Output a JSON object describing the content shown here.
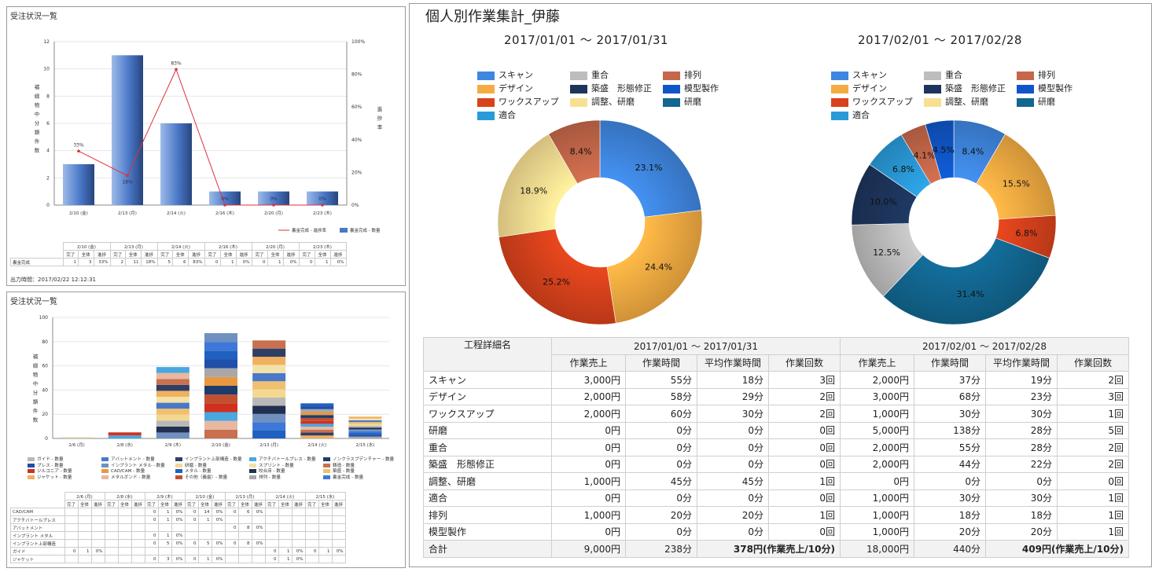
{
  "panel1": {
    "title": "受注状況一覧",
    "footer": "出力時間：2017/02/22 12:12:31",
    "chart_data": {
      "type": "bar",
      "categories": [
        "2/10 (金)",
        "2/13 (月)",
        "2/14 (火)",
        "2/16 (木)",
        "2/20 (月)",
        "2/23 (木)"
      ],
      "series": [
        {
          "name": "裏金完成 - 数量",
          "values": [
            3,
            11,
            6,
            1,
            1,
            1
          ],
          "color": "#4a78c8"
        },
        {
          "name": "裏金完成 - 進捗率",
          "values": [
            33,
            18,
            83,
            0,
            0,
            0
          ],
          "color": "#e0303a"
        }
      ],
      "data_labels": [
        "33%",
        "18%",
        "83%",
        "0%",
        "0%",
        "0%"
      ],
      "ylabel": "補綴物中分類件数",
      "y2label": "進捗率",
      "ylim": [
        0,
        12
      ],
      "y2lim": [
        0,
        100
      ],
      "y_ticks": [
        "0",
        "2",
        "4",
        "6",
        "8",
        "10",
        "12"
      ],
      "y2_ticks": [
        "0%",
        "20%",
        "40%",
        "60%",
        "80%",
        "100%"
      ],
      "legend": [
        "裏金完成 - 進捗率",
        "裏金完成 - 数量"
      ]
    },
    "table": {
      "dates": [
        "2/10 (金)",
        "2/13 (月)",
        "2/14 (火)",
        "2/16 (木)",
        "2/20 (月)",
        "2/23 (木)"
      ],
      "subheaders": [
        "完了",
        "全体",
        "進捗"
      ],
      "row_label": "裏金完成",
      "values": [
        "1",
        "3",
        "33%",
        "2",
        "11",
        "18%",
        "5",
        "6",
        "83%",
        "0",
        "1",
        "0%",
        "0",
        "1",
        "0%",
        "0",
        "1",
        "0%"
      ]
    }
  },
  "panel2": {
    "title": "受注状況一覧",
    "chart_data": {
      "type": "bar",
      "stacked": true,
      "categories": [
        "2/6 (月)",
        "2/8 (水)",
        "2/9 (木)",
        "2/10 (金)",
        "2/13 (月)",
        "2/14 (火)",
        "2/15 (水)"
      ],
      "totals": [
        1,
        5,
        59,
        87,
        81,
        29,
        18
      ],
      "ylabel": "補綴物中分類件数",
      "ylim": [
        0,
        100
      ],
      "y_ticks": [
        "0",
        "20",
        "40",
        "60",
        "80",
        "100"
      ],
      "legend": [
        "ガイド - 数量",
        "アバットメント - 数量",
        "インプラント上部構造 - 数量",
        "アクチバトールプレス - 数量",
        "ノンクラスプデンチャー - 数量",
        "プレス - 数量",
        "インプラント メタル - 数量",
        "研磨 - 数量",
        "スプリント - 数量",
        "鋳造 - 数量",
        "ジルコニア - 数量",
        "CAD/CAM - 数量",
        "メタル - 数量",
        "咬合床 - 数量",
        "築盛 - 数量",
        "ジャケット - 数量",
        "メタルボンド - 数量",
        "その他（義歯）- 数量",
        "排列 - 数量",
        "裏金完成 - 数量"
      ],
      "legend_colors": [
        "#b8b8b8",
        "#4a78c8",
        "#2e3f66",
        "#4aa8e0",
        "#1c3c6c",
        "#1f4fa8",
        "#7090c0",
        "#f4d890",
        "#f3e2a8",
        "#c87050",
        "#d03020",
        "#e89840",
        "#2060c0",
        "#203050",
        "#f0c070",
        "#f0b060",
        "#e8b8a0",
        "#c05030",
        "#a8a8a8",
        "#3d78d8"
      ]
    },
    "table": {
      "dates": [
        "2/6 (月)",
        "2/8 (水)",
        "2/9 (木)",
        "2/10 (金)",
        "2/13 (月)",
        "2/14 (火)",
        "2/15 (水)"
      ],
      "subheaders": [
        "完了",
        "全体",
        "進捗"
      ],
      "rows": [
        {
          "label": "CAD/CAM",
          "cells": [
            "",
            "",
            "",
            "",
            "",
            "",
            "0",
            "1",
            "0%",
            "0",
            "14",
            "0%",
            "0",
            "6",
            "0%",
            "",
            "",
            "",
            "",
            "",
            ""
          ]
        },
        {
          "label": "アクチバトールプレス",
          "cells": [
            "",
            "",
            "",
            "",
            "",
            "",
            "0",
            "1",
            "0%",
            "0",
            "1",
            "0%",
            "",
            "",
            "",
            "",
            "",
            "",
            "",
            "",
            ""
          ]
        },
        {
          "label": "アバットメント",
          "cells": [
            "",
            "",
            "",
            "",
            "",
            "",
            "",
            "",
            "",
            "",
            "",
            "",
            "0",
            "8",
            "0%",
            "",
            "",
            "",
            "",
            "",
            ""
          ]
        },
        {
          "label": "インプラント メタル",
          "cells": [
            "",
            "",
            "",
            "",
            "",
            "",
            "0",
            "1",
            "0%",
            "",
            "",
            "",
            "",
            "",
            "",
            "",
            "",
            "",
            "",
            "",
            ""
          ]
        },
        {
          "label": "インプラント上部構造",
          "cells": [
            "",
            "",
            "",
            "",
            "",
            "",
            "0",
            "5",
            "0%",
            "0",
            "5",
            "0%",
            "0",
            "8",
            "0%",
            "",
            "",
            "",
            "",
            "",
            ""
          ]
        },
        {
          "label": "ガイド",
          "cells": [
            "0",
            "1",
            "0%",
            "",
            "",
            "",
            "",
            "",
            "",
            "",
            "",
            "",
            "",
            "",
            "",
            "0",
            "1",
            "0%",
            "0",
            "1",
            "0%"
          ]
        },
        {
          "label": "ジャケット",
          "cells": [
            "",
            "",
            "",
            "",
            "",
            "",
            "0",
            "3",
            "0%",
            "0",
            "1",
            "0%",
            "",
            "",
            "",
            "0",
            "1",
            "0%",
            "",
            "",
            ""
          ]
        }
      ]
    }
  },
  "main": {
    "title": "個人別作業集計_伊藤",
    "legend": [
      {
        "label": "スキャン",
        "color": "#3f86e0"
      },
      {
        "label": "重合",
        "color": "#bdbdbd"
      },
      {
        "label": "排列",
        "color": "#c4684a"
      },
      {
        "label": "デザイン",
        "color": "#f4ac42"
      },
      {
        "label": "築盛　形態修正",
        "color": "#1d355c"
      },
      {
        "label": "模型製作",
        "color": "#0f56c8"
      },
      {
        "label": "ワックスアップ",
        "color": "#d8421c"
      },
      {
        "label": "調整、研磨",
        "color": "#f8e093"
      },
      {
        "label": "研磨",
        "color": "#126690"
      },
      {
        "label": "適合",
        "color": "#2a9ad8"
      }
    ],
    "periods": [
      {
        "title": "2017/01/01 ～ 2017/01/31",
        "chart_data": {
          "type": "pie",
          "donut": true,
          "slices": [
            {
              "label": "スキャン",
              "value": 23.1,
              "color": "#3f86e0"
            },
            {
              "label": "デザイン",
              "value": 24.4,
              "color": "#f4ac42"
            },
            {
              "label": "ワックスアップ",
              "value": 25.2,
              "color": "#d8421c"
            },
            {
              "label": "調整、研磨",
              "value": 18.9,
              "color": "#f8e093"
            },
            {
              "label": "排列",
              "value": 8.4,
              "color": "#c4684a"
            }
          ]
        }
      },
      {
        "title": "2017/02/01 ～ 2017/02/28",
        "chart_data": {
          "type": "pie",
          "donut": true,
          "slices": [
            {
              "label": "スキャン",
              "value": 8.4,
              "color": "#3f86e0"
            },
            {
              "label": "デザイン",
              "value": 15.5,
              "color": "#f4ac42"
            },
            {
              "label": "ワックスアップ",
              "value": 6.8,
              "color": "#d8421c"
            },
            {
              "label": "研磨",
              "value": 31.4,
              "color": "#126690"
            },
            {
              "label": "重合",
              "value": 12.5,
              "color": "#bdbdbd"
            },
            {
              "label": "築盛　形態修正",
              "value": 10.0,
              "color": "#1d355c"
            },
            {
              "label": "適合",
              "value": 6.8,
              "color": "#2a9ad8"
            },
            {
              "label": "排列",
              "value": 4.1,
              "color": "#c4684a"
            },
            {
              "label": "模型製作",
              "value": 4.5,
              "color": "#0f56c8"
            }
          ]
        }
      }
    ],
    "table": {
      "name_header": "工程詳細名",
      "period_headers": [
        "2017/01/01 ～ 2017/01/31",
        "2017/02/01 ～ 2017/02/28"
      ],
      "col_headers": [
        "作業売上",
        "作業時間",
        "平均作業時間",
        "作業回数",
        "作業売上",
        "作業時間",
        "平均作業時間",
        "作業回数"
      ],
      "rows": [
        {
          "name": "スキャン",
          "cells": [
            "3,000円",
            "55分",
            "18分",
            "3回",
            "2,000円",
            "37分",
            "19分",
            "2回"
          ]
        },
        {
          "name": "デザイン",
          "cells": [
            "2,000円",
            "58分",
            "29分",
            "2回",
            "3,000円",
            "68分",
            "23分",
            "3回"
          ]
        },
        {
          "name": "ワックスアップ",
          "cells": [
            "2,000円",
            "60分",
            "30分",
            "2回",
            "1,000円",
            "30分",
            "30分",
            "1回"
          ]
        },
        {
          "name": "研磨",
          "cells": [
            "0円",
            "0分",
            "0分",
            "0回",
            "5,000円",
            "138分",
            "28分",
            "5回"
          ]
        },
        {
          "name": "重合",
          "cells": [
            "0円",
            "0分",
            "0分",
            "0回",
            "2,000円",
            "55分",
            "28分",
            "2回"
          ]
        },
        {
          "name": "築盛　形態修正",
          "cells": [
            "0円",
            "0分",
            "0分",
            "0回",
            "2,000円",
            "44分",
            "22分",
            "2回"
          ]
        },
        {
          "name": "調整、研磨",
          "cells": [
            "1,000円",
            "45分",
            "45分",
            "1回",
            "0円",
            "0分",
            "0分",
            "0回"
          ]
        },
        {
          "name": "適合",
          "cells": [
            "0円",
            "0分",
            "0分",
            "0回",
            "1,000円",
            "30分",
            "30分",
            "1回"
          ]
        },
        {
          "name": "排列",
          "cells": [
            "1,000円",
            "20分",
            "20分",
            "1回",
            "1,000円",
            "18分",
            "18分",
            "1回"
          ]
        },
        {
          "name": "模型製作",
          "cells": [
            "0円",
            "0分",
            "0分",
            "0回",
            "1,000円",
            "20分",
            "20分",
            "1回"
          ]
        }
      ],
      "total": {
        "name": "合計",
        "cells": [
          "9,000円",
          "238分",
          "378円(作業売上/10分)",
          "18,000円",
          "440分",
          "409円(作業売上/10分)"
        ]
      }
    }
  }
}
